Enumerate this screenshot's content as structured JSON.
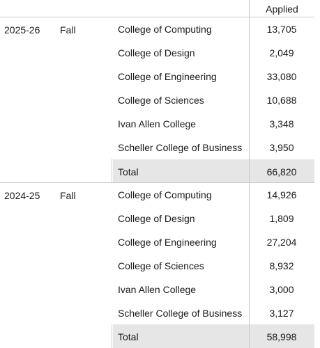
{
  "header": {
    "applied": "Applied"
  },
  "groups": [
    {
      "year": "2025-26",
      "term": "Fall",
      "rows": [
        {
          "label": "College of Computing",
          "value": "13,705"
        },
        {
          "label": "College of Design",
          "value": "2,049"
        },
        {
          "label": "College of Engineering",
          "value": "33,080"
        },
        {
          "label": "College of Sciences",
          "value": "10,688"
        },
        {
          "label": "Ivan Allen College",
          "value": "3,348"
        },
        {
          "label": "Scheller College of Business",
          "value": "3,950"
        }
      ],
      "total": {
        "label": "Total",
        "value": "66,820"
      }
    },
    {
      "year": "2024-25",
      "term": "Fall",
      "rows": [
        {
          "label": "College of Computing",
          "value": "14,926"
        },
        {
          "label": "College of Design",
          "value": "1,809"
        },
        {
          "label": "College of Engineering",
          "value": "27,204"
        },
        {
          "label": "College of Sciences",
          "value": "8,932"
        },
        {
          "label": "Ivan Allen College",
          "value": "3,000"
        },
        {
          "label": "Scheller College of Business",
          "value": "3,127"
        }
      ],
      "total": {
        "label": "Total",
        "value": "58,998"
      }
    }
  ]
}
